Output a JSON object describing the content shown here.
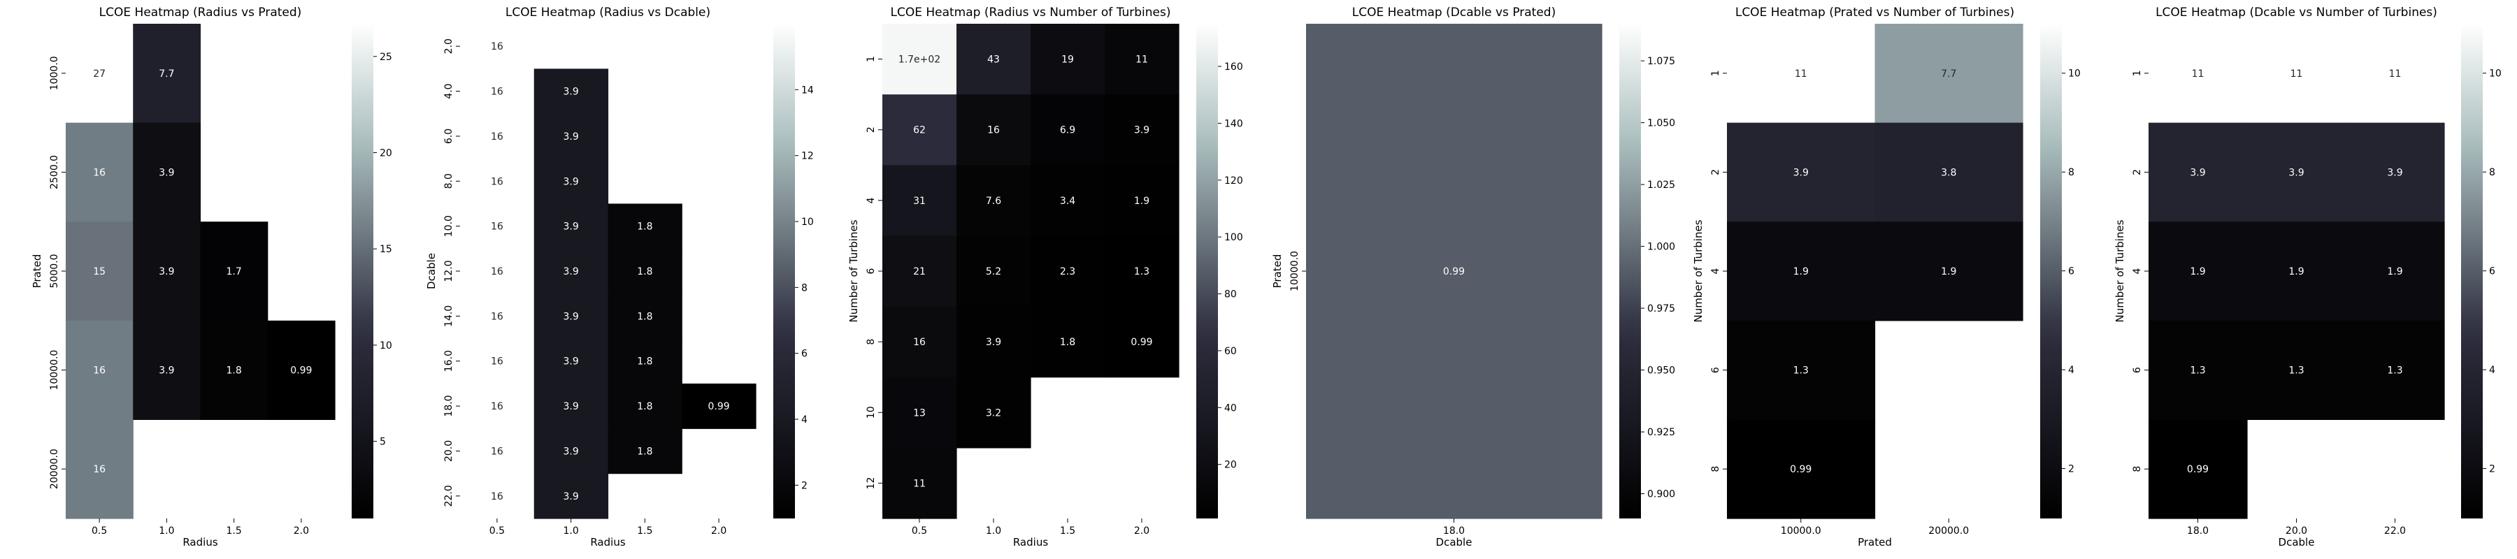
{
  "colormap": {
    "name": "bone",
    "stops": [
      {
        "t": 0.0,
        "color": "#000000"
      },
      {
        "t": 0.375,
        "color": "#2e2e3f"
      },
      {
        "t": 0.75,
        "color": "#a7bbbb"
      },
      {
        "t": 1.0,
        "color": "#ffffff"
      }
    ],
    "annotation_dark_text": "#262626",
    "annotation_light_text": "#ffffff"
  },
  "chart_data": [
    {
      "type": "heatmap",
      "title": "LCOE Heatmap (Radius vs Prated)",
      "xlabel": "Radius",
      "ylabel": "Prated",
      "x": [
        "0.5",
        "1.0",
        "1.5",
        "2.0"
      ],
      "y": [
        "1000.0",
        "2500.0",
        "5000.0",
        "10000.0",
        "20000.0"
      ],
      "values": [
        [
          26.7,
          7.7,
          null,
          null
        ],
        [
          16.0,
          3.9,
          null,
          null
        ],
        [
          15.3,
          3.9,
          1.7,
          null
        ],
        [
          16.0,
          3.9,
          1.8,
          0.99
        ],
        [
          16.0,
          null,
          null,
          null
        ]
      ],
      "labels": [
        [
          "27",
          "7.7",
          "",
          ""
        ],
        [
          "16",
          "3.9",
          "",
          ""
        ],
        [
          "15",
          "3.9",
          "1.7",
          ""
        ],
        [
          "16",
          "3.9",
          "1.8",
          "0.99"
        ],
        [
          "16",
          "",
          "",
          ""
        ]
      ],
      "vmin": 0.99,
      "vmax": 26.7,
      "colorbar_ticks": [
        "5",
        "10",
        "15",
        "20",
        "25"
      ],
      "colorbar_tick_values": [
        5,
        10,
        15,
        20,
        25
      ]
    },
    {
      "type": "heatmap",
      "title": "LCOE Heatmap (Radius vs Dcable)",
      "xlabel": "Radius",
      "ylabel": "Dcable",
      "x": [
        "0.5",
        "1.0",
        "1.5",
        "2.0"
      ],
      "y": [
        "2.0",
        "4.0",
        "6.0",
        "8.0",
        "10.0",
        "12.0",
        "14.0",
        "16.0",
        "18.0",
        "20.0",
        "22.0"
      ],
      "values": [
        [
          16.0,
          null,
          null,
          null
        ],
        [
          16.0,
          3.9,
          null,
          null
        ],
        [
          16.0,
          3.9,
          null,
          null
        ],
        [
          16.0,
          3.9,
          null,
          null
        ],
        [
          16.0,
          3.9,
          1.8,
          null
        ],
        [
          16.0,
          3.9,
          1.8,
          null
        ],
        [
          16.0,
          3.9,
          1.8,
          null
        ],
        [
          16.0,
          3.9,
          1.8,
          null
        ],
        [
          16.0,
          3.9,
          1.8,
          0.99
        ],
        [
          16.0,
          3.9,
          1.8,
          null
        ],
        [
          16.0,
          3.9,
          null,
          null
        ]
      ],
      "labels": [
        [
          "16",
          "",
          "",
          ""
        ],
        [
          "16",
          "3.9",
          "",
          ""
        ],
        [
          "16",
          "3.9",
          "",
          ""
        ],
        [
          "16",
          "3.9",
          "",
          ""
        ],
        [
          "16",
          "3.9",
          "1.8",
          ""
        ],
        [
          "16",
          "3.9",
          "1.8",
          ""
        ],
        [
          "16",
          "3.9",
          "1.8",
          ""
        ],
        [
          "16",
          "3.9",
          "1.8",
          ""
        ],
        [
          "16",
          "3.9",
          "1.8",
          "0.99"
        ],
        [
          "16",
          "3.9",
          "1.8",
          ""
        ],
        [
          "16",
          "3.9",
          "",
          ""
        ]
      ],
      "vmin": 0.99,
      "vmax": 16.0,
      "colorbar_ticks": [
        "2",
        "4",
        "6",
        "8",
        "10",
        "12",
        "14"
      ],
      "colorbar_tick_values": [
        2,
        4,
        6,
        8,
        10,
        12,
        14
      ]
    },
    {
      "type": "heatmap",
      "title": "LCOE Heatmap (Radius vs Number of Turbines)",
      "xlabel": "Radius",
      "ylabel": "Number of Turbines",
      "x": [
        "0.5",
        "1.0",
        "1.5",
        "2.0"
      ],
      "y": [
        "1",
        "2",
        "4",
        "6",
        "8",
        "10",
        "12"
      ],
      "values": [
        [
          170,
          43,
          19,
          11
        ],
        [
          62,
          16,
          6.9,
          3.9
        ],
        [
          31,
          7.6,
          3.4,
          1.9
        ],
        [
          21,
          5.2,
          2.3,
          1.3
        ],
        [
          16,
          3.9,
          1.8,
          0.99
        ],
        [
          13,
          3.2,
          null,
          null
        ],
        [
          11,
          null,
          null,
          null
        ]
      ],
      "labels": [
        [
          "1.7e+02",
          "43",
          "19",
          "11"
        ],
        [
          "62",
          "16",
          "6.9",
          "3.9"
        ],
        [
          "31",
          "7.6",
          "3.4",
          "1.9"
        ],
        [
          "21",
          "5.2",
          "2.3",
          "1.3"
        ],
        [
          "16",
          "3.9",
          "1.8",
          "0.99"
        ],
        [
          "13",
          "3.2",
          "",
          ""
        ],
        [
          "11",
          "",
          "",
          ""
        ]
      ],
      "vmin": 0.99,
      "vmax": 175,
      "colorbar_ticks": [
        "20",
        "40",
        "60",
        "80",
        "100",
        "120",
        "140",
        "160"
      ],
      "colorbar_tick_values": [
        20,
        40,
        60,
        80,
        100,
        120,
        140,
        160
      ]
    },
    {
      "type": "heatmap",
      "title": "LCOE Heatmap (Dcable vs Prated)",
      "xlabel": "Dcable",
      "ylabel": "Prated",
      "x": [
        "18.0"
      ],
      "y": [
        "10000.0"
      ],
      "values": [
        [
          0.99
        ]
      ],
      "labels": [
        [
          "0.99"
        ]
      ],
      "vmin": 0.89,
      "vmax": 1.09,
      "colorbar_ticks": [
        "0.900",
        "0.925",
        "0.950",
        "0.975",
        "1.000",
        "1.025",
        "1.050",
        "1.075"
      ],
      "colorbar_tick_values": [
        0.9,
        0.925,
        0.95,
        0.975,
        1.0,
        1.025,
        1.05,
        1.075
      ]
    },
    {
      "type": "heatmap",
      "title": "LCOE Heatmap (Prated vs Number of Turbines)",
      "xlabel": "Prated",
      "ylabel": "Number of Turbines",
      "x": [
        "10000.0",
        "20000.0"
      ],
      "y": [
        "1",
        "2",
        "4",
        "6",
        "8"
      ],
      "values": [
        [
          11.0,
          7.7
        ],
        [
          3.9,
          3.8
        ],
        [
          1.9,
          1.9
        ],
        [
          1.3,
          null
        ],
        [
          0.99,
          null
        ]
      ],
      "labels": [
        [
          "11",
          "7.7"
        ],
        [
          "3.9",
          "3.8"
        ],
        [
          "1.9",
          "1.9"
        ],
        [
          "1.3",
          ""
        ],
        [
          "0.99",
          ""
        ]
      ],
      "vmin": 0.99,
      "vmax": 11.0,
      "colorbar_ticks": [
        "2",
        "4",
        "6",
        "8",
        "10"
      ],
      "colorbar_tick_values": [
        2,
        4,
        6,
        8,
        10
      ]
    },
    {
      "type": "heatmap",
      "title": "LCOE Heatmap (Dcable vs Number of Turbines)",
      "xlabel": "Dcable",
      "ylabel": "Number of Turbines",
      "x": [
        "18.0",
        "20.0",
        "22.0"
      ],
      "y": [
        "1",
        "2",
        "4",
        "6",
        "8"
      ],
      "values": [
        [
          11.0,
          11.0,
          11.0
        ],
        [
          3.9,
          3.9,
          3.9
        ],
        [
          1.9,
          1.9,
          1.9
        ],
        [
          1.3,
          1.3,
          1.3
        ],
        [
          0.99,
          null,
          null
        ]
      ],
      "labels": [
        [
          "11",
          "11",
          "11"
        ],
        [
          "3.9",
          "3.9",
          "3.9"
        ],
        [
          "1.9",
          "1.9",
          "1.9"
        ],
        [
          "1.3",
          "1.3",
          "1.3"
        ],
        [
          "0.99",
          "",
          ""
        ]
      ],
      "vmin": 0.99,
      "vmax": 11.0,
      "colorbar_ticks": [
        "2",
        "4",
        "6",
        "8",
        "10"
      ],
      "colorbar_tick_values": [
        2,
        4,
        6,
        8,
        10
      ]
    }
  ]
}
